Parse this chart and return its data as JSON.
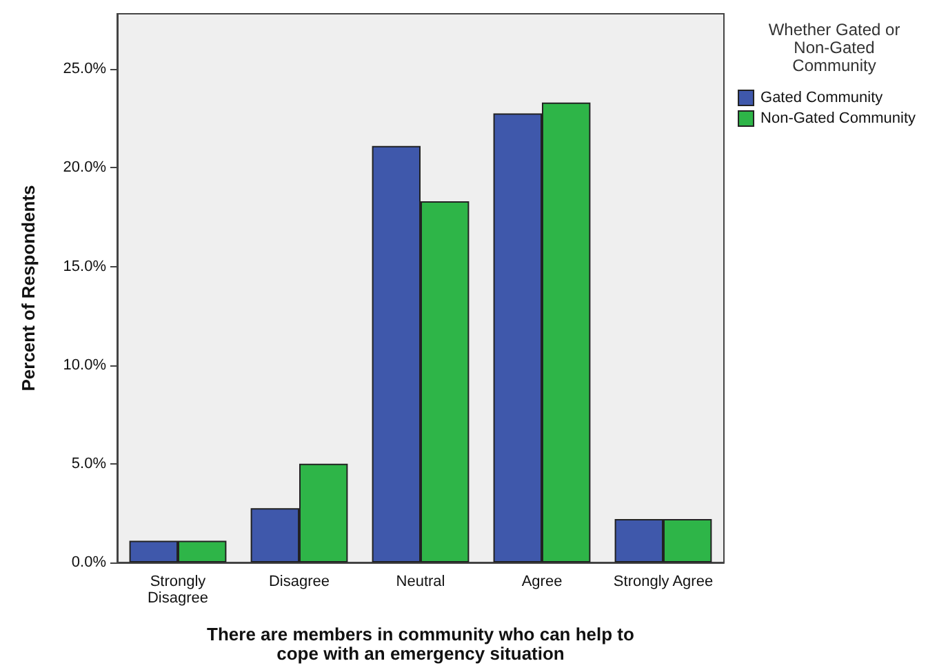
{
  "chart_data": {
    "type": "bar",
    "xlabel": "There are members in community who can help to\ncope with an emergency situation",
    "ylabel": "Percent of Respondents",
    "legend_title": "Whether Gated or\nNon-Gated\nCommunity",
    "categories": [
      "Strongly\nDisagree",
      "Disagree",
      "Neutral",
      "Agree",
      "Strongly Agree"
    ],
    "series": [
      {
        "name": "Gated Community",
        "color": "#3f58ab",
        "values": [
          1.1,
          2.75,
          21.1,
          22.75,
          2.2
        ]
      },
      {
        "name": "Non-Gated Community",
        "color": "#2eb548",
        "values": [
          1.1,
          5.0,
          18.3,
          23.3,
          2.2
        ]
      }
    ],
    "ylim": [
      0,
      27.8
    ],
    "yticks": [
      {
        "value": 0,
        "label": "0.0%"
      },
      {
        "value": 5,
        "label": "5.0%"
      },
      {
        "value": 10,
        "label": "10.0%"
      },
      {
        "value": 15,
        "label": "15.0%"
      },
      {
        "value": 20,
        "label": "20.0%"
      },
      {
        "value": 25,
        "label": "25.0%"
      }
    ],
    "grid": false,
    "legend": "right"
  }
}
